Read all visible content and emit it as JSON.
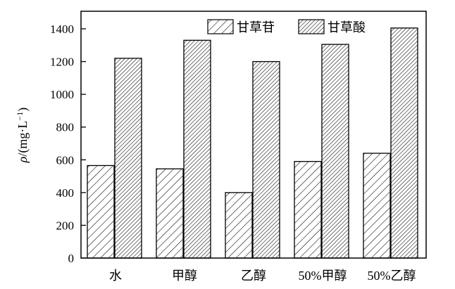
{
  "chart_data": {
    "type": "bar",
    "categories": [
      "水",
      "甲醇",
      "乙醇",
      "50%甲醇",
      "50%乙醇"
    ],
    "series": [
      {
        "name": "甘草苷",
        "values": [
          565,
          545,
          400,
          590,
          640
        ],
        "pattern": "sparse-hatch"
      },
      {
        "name": "甘草酸",
        "values": [
          1220,
          1330,
          1200,
          1305,
          1405
        ],
        "pattern": "dense-hatch"
      }
    ],
    "ylabel_symbol": "ρ",
    "ylabel_rest": "/(mg·L",
    "ylabel_sup": "−1",
    "ylabel_close": ")",
    "ylim": [
      0,
      1400
    ],
    "yticks": [
      "0",
      "200",
      "400",
      "600",
      "800",
      "1000",
      "1200",
      "1400"
    ],
    "legend_position": "top-right",
    "grid": false
  }
}
